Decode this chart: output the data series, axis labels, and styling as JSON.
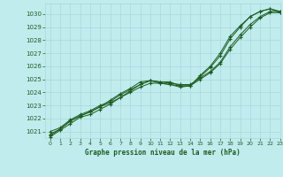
{
  "title": "Graphe pression niveau de la mer (hPa)",
  "bg_color": "#c0ecee",
  "grid_color": "#a8d8da",
  "line_color": "#1e5c1e",
  "xlim": [
    -0.5,
    23
  ],
  "ylim": [
    1020.5,
    1030.8
  ],
  "yticks": [
    1021,
    1022,
    1023,
    1024,
    1025,
    1026,
    1027,
    1028,
    1029,
    1030
  ],
  "xticks": [
    0,
    1,
    2,
    3,
    4,
    5,
    6,
    7,
    8,
    9,
    10,
    11,
    12,
    13,
    14,
    15,
    16,
    17,
    18,
    19,
    20,
    21,
    22,
    23
  ],
  "series": {
    "line1": [
      1020.6,
      1021.1,
      1021.6,
      1022.1,
      1022.3,
      1022.7,
      1023.1,
      1023.6,
      1024.1,
      1024.6,
      1024.9,
      1024.7,
      1024.6,
      1024.4,
      1024.5,
      1025.2,
      1025.9,
      1026.8,
      1028.1,
      1029.0,
      1029.8,
      1030.2,
      1030.4,
      1030.2
    ],
    "line2": [
      1020.8,
      1021.2,
      1021.8,
      1022.2,
      1022.5,
      1022.9,
      1023.2,
      1023.6,
      1024.0,
      1024.4,
      1024.7,
      1024.7,
      1024.6,
      1024.5,
      1024.5,
      1025.0,
      1025.5,
      1026.2,
      1027.3,
      1028.2,
      1029.0,
      1029.7,
      1030.1,
      1030.1
    ],
    "line3": [
      1021.0,
      1021.3,
      1021.9,
      1022.3,
      1022.6,
      1023.0,
      1023.3,
      1023.8,
      1024.2,
      1024.6,
      1024.9,
      1024.8,
      1024.7,
      1024.6,
      1024.6,
      1025.1,
      1025.6,
      1026.3,
      1027.5,
      1028.4,
      1029.2,
      1029.8,
      1030.2,
      1030.2
    ],
    "line4": [
      1020.7,
      1021.2,
      1021.8,
      1022.2,
      1022.5,
      1022.9,
      1023.4,
      1023.9,
      1024.3,
      1024.8,
      1024.9,
      1024.8,
      1024.8,
      1024.5,
      1024.5,
      1025.3,
      1026.0,
      1027.0,
      1028.3,
      1029.1,
      1029.8,
      1030.2,
      1030.4,
      1030.1
    ]
  }
}
